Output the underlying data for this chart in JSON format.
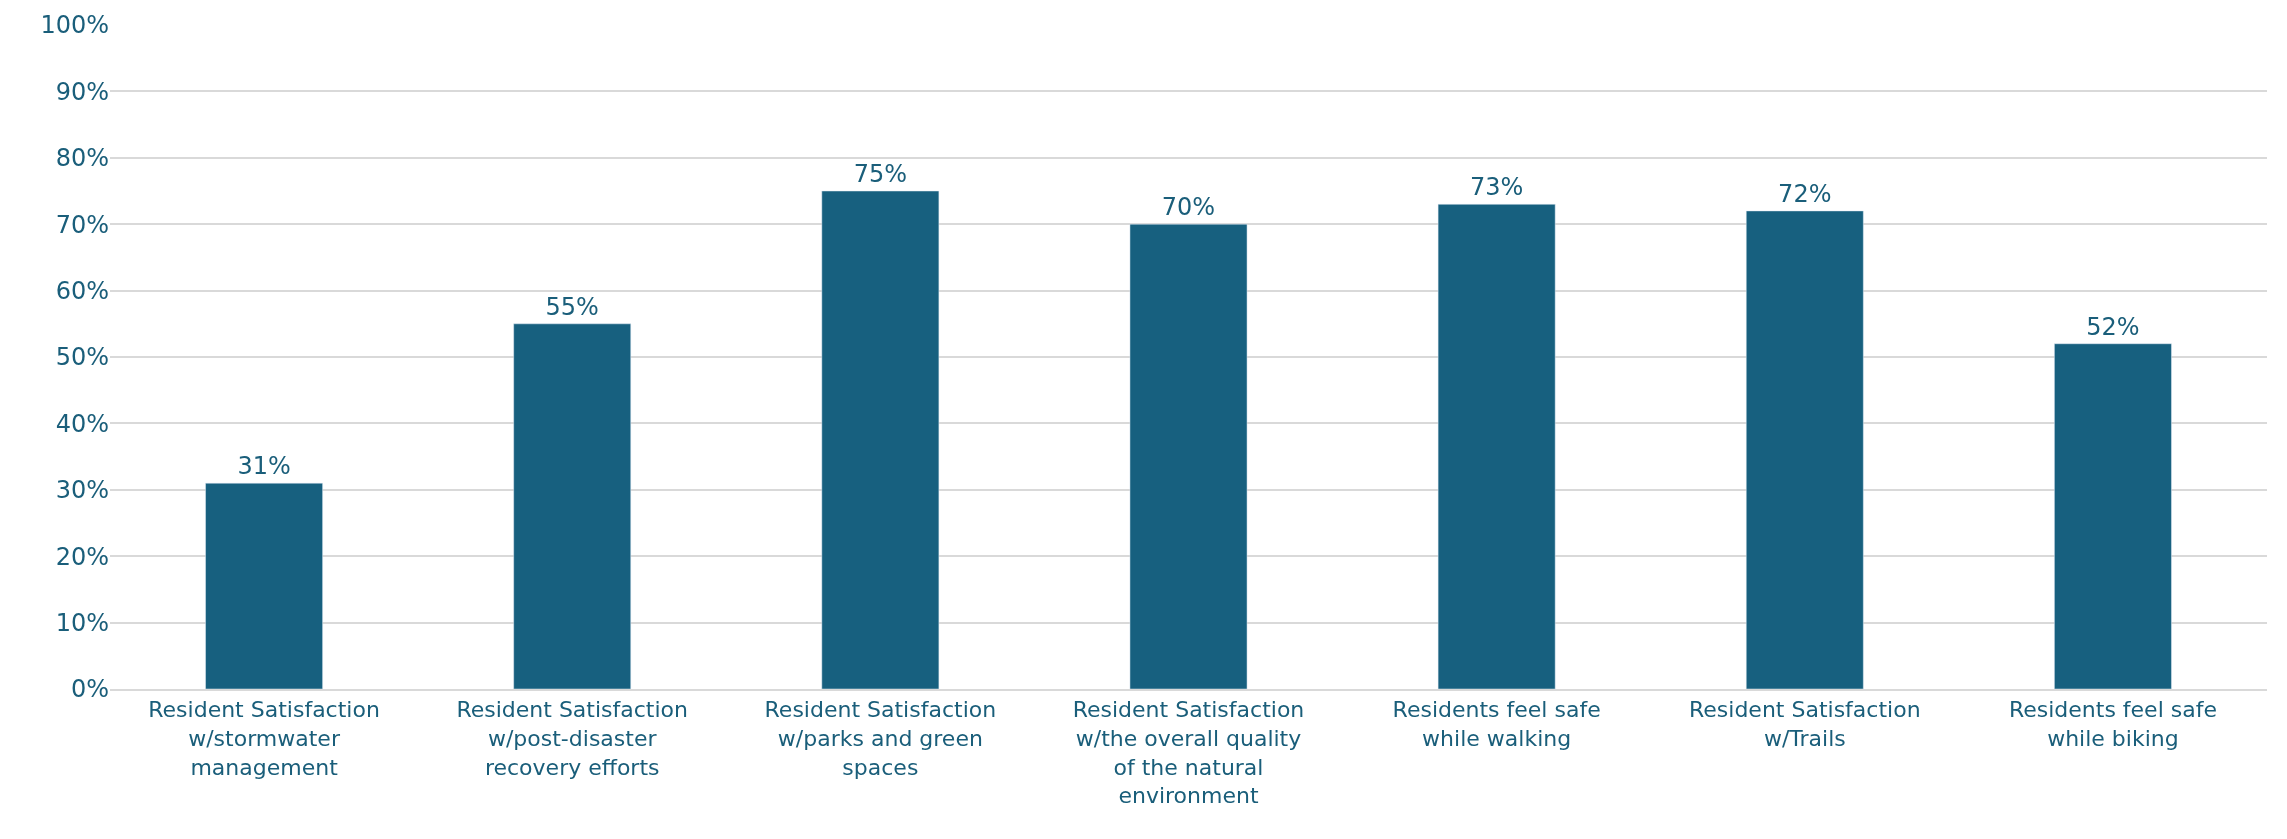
{
  "chart_data": {
    "type": "bar",
    "categories": [
      "Resident Satisfaction w/stormwater management",
      "Resident Satisfaction w/post-disaster recovery efforts",
      "Resident Satisfaction w/parks and green spaces",
      "Resident Satisfaction w/the overall quality of the natural environment",
      "Residents feel safe while walking",
      "Resident Satisfaction w/Trails",
      "Residents feel safe while biking"
    ],
    "values": [
      31,
      55,
      75,
      70,
      73,
      72,
      52
    ],
    "color": "#17607f",
    "ylim": [
      0,
      100
    ],
    "yticks": [
      {
        "value": 0,
        "label": "0%"
      },
      {
        "value": 10,
        "label": "10%"
      },
      {
        "value": 20,
        "label": "20%"
      },
      {
        "value": 30,
        "label": "30%"
      },
      {
        "value": 40,
        "label": "40%"
      },
      {
        "value": 50,
        "label": "50%"
      },
      {
        "value": 60,
        "label": "60%"
      },
      {
        "value": 70,
        "label": "70%"
      },
      {
        "value": 80,
        "label": "80%"
      },
      {
        "value": 90,
        "label": "90%"
      },
      {
        "value": 100,
        "label": "100%"
      }
    ],
    "value_labels": [
      "31%",
      "55%",
      "75%",
      "70%",
      "73%",
      "72%",
      "52%"
    ],
    "grid": "y",
    "legend": false
  }
}
